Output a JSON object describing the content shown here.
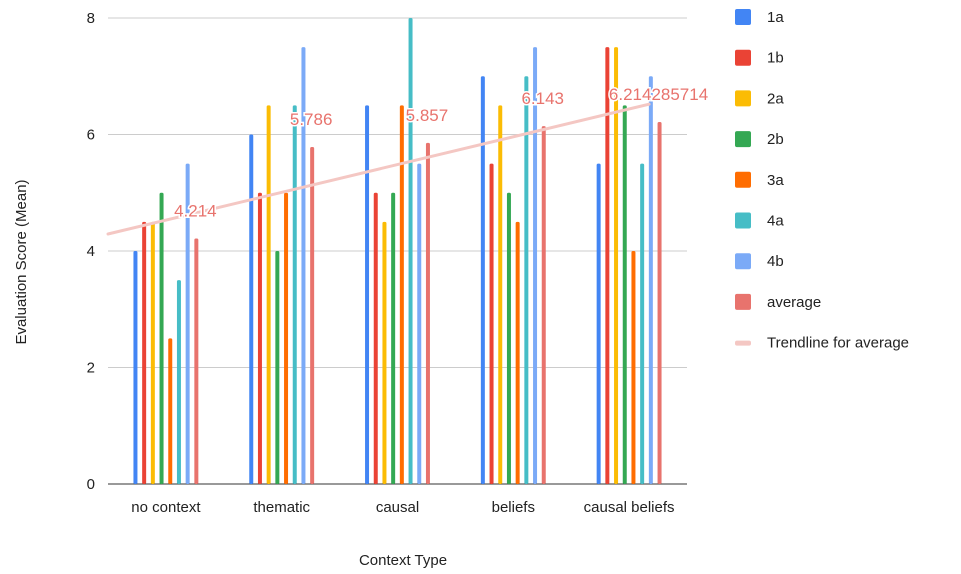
{
  "chart_data": {
    "type": "bar",
    "title": "",
    "xlabel": "Context Type",
    "ylabel": "Evaluation Score (Mean)",
    "ylim": [
      0,
      8
    ],
    "yticks": [
      0,
      2,
      4,
      6,
      8
    ],
    "grid": true,
    "legend_position": "right",
    "categories": [
      "no context",
      "thematic",
      "causal",
      "beliefs",
      "causal beliefs"
    ],
    "series": [
      {
        "name": "1a",
        "color": "#4285f4",
        "values": [
          4,
          6,
          6.5,
          7,
          5.5
        ]
      },
      {
        "name": "1b",
        "color": "#ea4335",
        "values": [
          4.5,
          5,
          5,
          5.5,
          7.5
        ]
      },
      {
        "name": "2a",
        "color": "#fbbc04",
        "values": [
          4.5,
          6.5,
          4.5,
          6.5,
          7.5
        ]
      },
      {
        "name": "2b",
        "color": "#34a853",
        "values": [
          5,
          4,
          5,
          5,
          6.5
        ]
      },
      {
        "name": "3a",
        "color": "#ff6d01",
        "values": [
          2.5,
          5,
          6.5,
          4.5,
          4
        ]
      },
      {
        "name": "4a",
        "color": "#46bdc6",
        "values": [
          3.5,
          6.5,
          8,
          7,
          5.5
        ]
      },
      {
        "name": "4b",
        "color": "#7baaf7",
        "values": [
          5.5,
          7.5,
          5.5,
          7.5,
          7
        ]
      },
      {
        "name": "average",
        "color": "#e8736d",
        "values": [
          4.214,
          5.786,
          5.857,
          6.143,
          6.214285714
        ]
      }
    ],
    "data_labels": [
      "4.214",
      "5.786",
      "5.857",
      "6.143",
      "6.214285714"
    ],
    "trendline": {
      "name": "Trendline for average",
      "color": "#f4c7c3",
      "start": 4.53,
      "slope": 0.477
    }
  }
}
